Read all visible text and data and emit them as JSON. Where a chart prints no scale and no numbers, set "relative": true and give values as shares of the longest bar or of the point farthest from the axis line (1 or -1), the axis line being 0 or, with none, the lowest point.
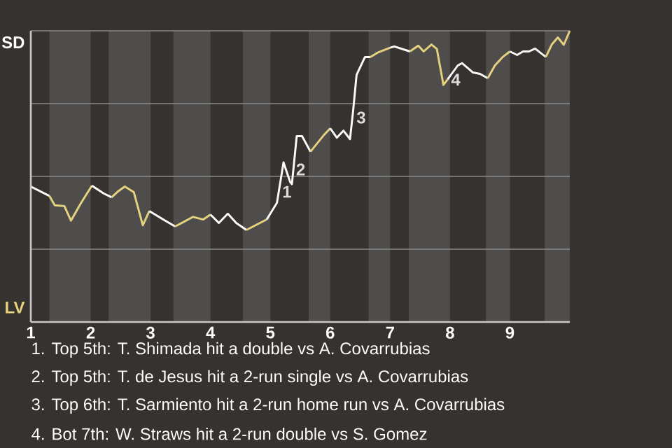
{
  "chart_data": {
    "type": "line",
    "relative": true,
    "xlim": [
      1,
      10
    ],
    "xticks": [
      {
        "value": 1,
        "label": "1"
      },
      {
        "value": 2,
        "label": "2"
      },
      {
        "value": 3,
        "label": "3"
      },
      {
        "value": 4,
        "label": "4"
      },
      {
        "value": 5,
        "label": "5"
      },
      {
        "value": 6,
        "label": "6"
      },
      {
        "value": 7,
        "label": "7"
      },
      {
        "value": 8,
        "label": "8"
      },
      {
        "value": 9,
        "label": "9"
      }
    ],
    "grid": "y",
    "marker": "none",
    "line_style": "solid",
    "bands": [
      {
        "axis": "x",
        "from": 1.31,
        "to": 2,
        "color": "#4e4d4b"
      },
      {
        "axis": "x",
        "from": 2.3,
        "to": 3,
        "color": "#4e4d4b"
      },
      {
        "axis": "x",
        "from": 3.38,
        "to": 4,
        "color": "#4e4d4b"
      },
      {
        "axis": "x",
        "from": 4.54,
        "to": 5,
        "color": "#4e4d4b"
      },
      {
        "axis": "x",
        "from": 5.64,
        "to": 6,
        "color": "#4e4d4b"
      },
      {
        "axis": "x",
        "from": 6.64,
        "to": 7,
        "color": "#4e4d4b"
      },
      {
        "axis": "x",
        "from": 7.31,
        "to": 8,
        "color": "#4e4d4b"
      },
      {
        "axis": "x",
        "from": 8.6,
        "to": 9,
        "color": "#4e4d4b"
      },
      {
        "axis": "x",
        "from": 9.58,
        "to": 10,
        "color": "#4e4d4b"
      }
    ],
    "series": [
      {
        "color": "#ffffff",
        "x": [
          1.0,
          1.31
        ],
        "values": [
          0.465,
          0.433
        ]
      },
      {
        "color": "#e6d27f",
        "x": [
          1.31,
          1.4,
          1.56,
          1.67,
          1.84,
          2.02
        ],
        "values": [
          0.433,
          0.401,
          0.398,
          0.348,
          0.409,
          0.468
        ]
      },
      {
        "color": "#fefefe",
        "x": [
          2.02,
          2.22,
          2.35
        ],
        "values": [
          0.468,
          0.441,
          0.428
        ]
      },
      {
        "color": "#e5d27f",
        "x": [
          2.35,
          2.46,
          2.57,
          2.72,
          2.87,
          2.98
        ],
        "values": [
          0.428,
          0.449,
          0.465,
          0.446,
          0.332,
          0.381
        ]
      },
      {
        "color": "#fdfdfd",
        "x": [
          2.98,
          3.21,
          3.41
        ],
        "values": [
          0.381,
          0.352,
          0.328
        ]
      },
      {
        "color": "#e4d27f",
        "x": [
          3.41,
          3.71,
          3.88,
          4.0
        ],
        "values": [
          0.328,
          0.361,
          0.352,
          0.369
        ]
      },
      {
        "color": "#fcfcfc",
        "x": [
          4.0,
          4.14,
          4.29,
          4.43,
          4.6
        ],
        "values": [
          0.369,
          0.34,
          0.372,
          0.34,
          0.316
        ]
      },
      {
        "color": "#e6d17f",
        "x": [
          4.6,
          4.94
        ],
        "values": [
          0.316,
          0.352
        ]
      },
      {
        "color": "#fbfbfb",
        "x": [
          4.94,
          5.11,
          5.22,
          5.33,
          5.36,
          5.44,
          5.53,
          5.67
        ],
        "values": [
          0.352,
          0.409,
          0.548,
          0.481,
          0.473,
          0.638,
          0.638,
          0.585
        ]
      },
      {
        "color": "#e6d07f",
        "x": [
          5.67,
          5.89,
          6.0
        ],
        "values": [
          0.585,
          0.641,
          0.665
        ]
      },
      {
        "color": "#fafafa",
        "x": [
          6.0,
          6.11,
          6.22,
          6.33,
          6.38,
          6.44,
          6.58,
          6.67
        ],
        "values": [
          0.665,
          0.633,
          0.657,
          0.628,
          0.721,
          0.849,
          0.91,
          0.91
        ]
      },
      {
        "color": "#e6d27e",
        "x": [
          6.67,
          6.8,
          7.0
        ],
        "values": [
          0.91,
          0.926,
          0.942
        ]
      },
      {
        "color": "#f9f9f9",
        "x": [
          7.0,
          7.07,
          7.33
        ],
        "values": [
          0.942,
          0.946,
          0.929
        ]
      },
      {
        "color": "#e6d27d",
        "x": [
          7.33,
          7.47,
          7.56,
          7.69,
          7.78,
          7.89,
          7.96
        ],
        "values": [
          0.929,
          0.949,
          0.929,
          0.953,
          0.938,
          0.814,
          0.833
        ]
      },
      {
        "color": "#f8f8f8",
        "x": [
          7.96,
          8.13,
          8.2,
          8.38,
          8.5,
          8.63
        ],
        "values": [
          0.833,
          0.881,
          0.889,
          0.857,
          0.852,
          0.837
        ]
      },
      {
        "color": "#e5d17f",
        "x": [
          8.63,
          8.75,
          8.88,
          9.0
        ],
        "values": [
          0.837,
          0.881,
          0.91,
          0.929
        ]
      },
      {
        "color": "#f7f7f7",
        "x": [
          9.0,
          9.12,
          9.22,
          9.32,
          9.42,
          9.6
        ],
        "values": [
          0.929,
          0.917,
          0.929,
          0.929,
          0.939,
          0.91
        ]
      },
      {
        "color": "#e4d07f",
        "x": [
          9.6,
          9.7,
          9.8,
          9.9,
          10.0
        ],
        "values": [
          0.91,
          0.953,
          0.977,
          0.952,
          1.0
        ]
      }
    ],
    "annotations": [
      {
        "text": "1",
        "x": 5.13,
        "y": 0.447
      },
      {
        "text": "2",
        "x": 5.36,
        "y": 0.524
      },
      {
        "text": "3",
        "x": 6.37,
        "y": 0.702
      },
      {
        "text": "4",
        "x": 7.95,
        "y": 0.832
      },
      "SD",
      "LV",
      "1. Top 5th: T. Shimada hit a double vs A. Covarrubias",
      "2. Top 5th: T. de Jesus hit a 2-run single vs A. Covarrubias",
      "3. Top 6th: T. Sarmiento hit a 2-run home run vs A. Covarrubias",
      "4. Bot 7th: W. Straws hit a 2-run double vs S. Gomez"
    ]
  }
}
